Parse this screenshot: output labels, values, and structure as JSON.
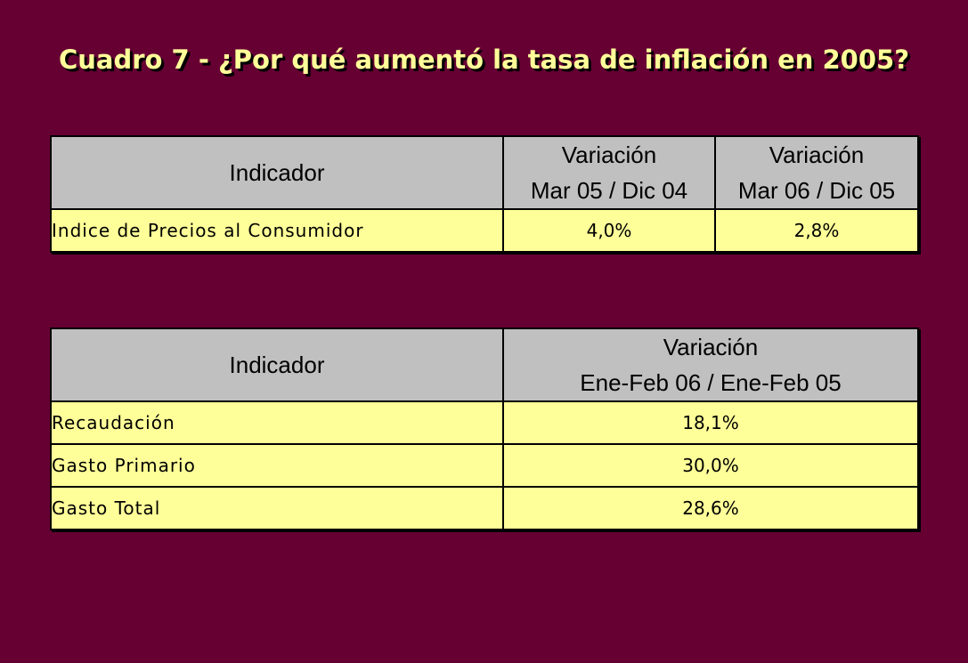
{
  "title": "Cuadro 7 - ¿Por qué aumentó la tasa de inflación en 2005?",
  "colors": {
    "background": "#660033",
    "title": "#ffff99",
    "header_fill": "#c0c0c0",
    "cell_fill": "#ffff99"
  },
  "table1": {
    "header": {
      "indicator": "Indicador",
      "col1_line1": "Variación",
      "col1_line2": "Mar 05 / Dic 04",
      "col2_line1": "Variación",
      "col2_line2": "Mar 06 / Dic 05"
    },
    "rows": [
      {
        "label": "Indice de Precios al Consumidor",
        "v1": "4,0%",
        "v2": "2,8%"
      }
    ]
  },
  "table2": {
    "header": {
      "indicator": "Indicador",
      "col1_line1": "Variación",
      "col1_line2": "Ene-Feb 06 / Ene-Feb 05"
    },
    "rows": [
      {
        "label": "Recaudación",
        "v1": "18,1%"
      },
      {
        "label": "Gasto Primario",
        "v1": "30,0%"
      },
      {
        "label": "Gasto Total",
        "v1": "28,6%"
      }
    ]
  }
}
